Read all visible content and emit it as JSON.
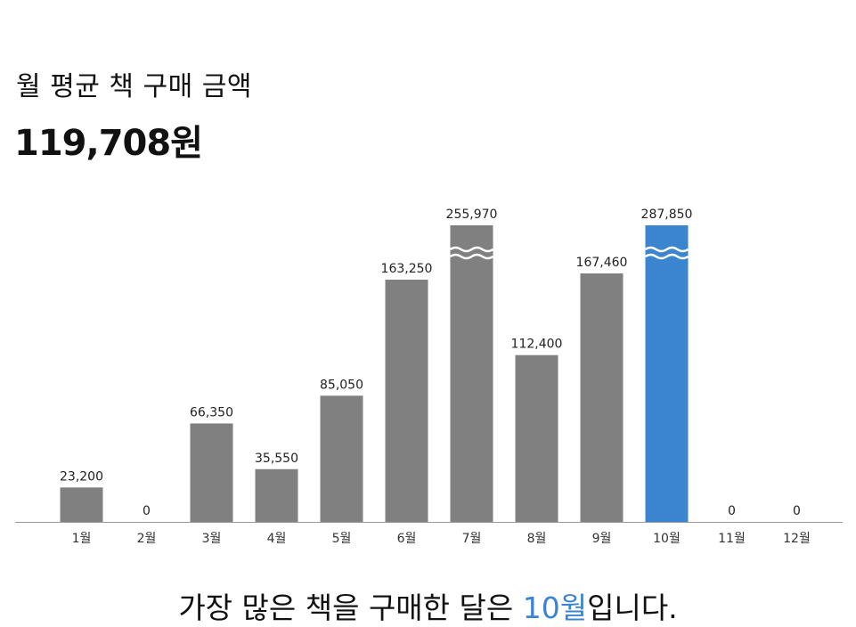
{
  "header": {
    "label": "월 평균 책 구매 금액",
    "value": "119,708원"
  },
  "chart_data": {
    "type": "bar",
    "categories": [
      "1월",
      "2월",
      "3월",
      "4월",
      "5월",
      "6월",
      "7월",
      "8월",
      "9월",
      "10월",
      "11월",
      "12월"
    ],
    "values": [
      23200,
      0,
      66350,
      35550,
      85050,
      163250,
      255970,
      112400,
      167460,
      287850,
      0,
      0
    ],
    "data_labels": [
      "23,200",
      "0",
      "66,350",
      "35,550",
      "85,050",
      "163,250",
      "255,970",
      "112,400",
      "167,460",
      "287,850",
      "0",
      "0"
    ],
    "truncated": [
      false,
      false,
      false,
      false,
      false,
      false,
      true,
      false,
      false,
      true,
      false,
      false
    ],
    "highlight_index": 9,
    "title": "",
    "xlabel": "",
    "ylabel": "",
    "grid": false,
    "legend": "none",
    "colors": {
      "bar": "#808080",
      "highlight": "#3a84d0",
      "axis": "#9a9a9a"
    }
  },
  "summary": {
    "prefix": "가장 많은 책을 구매한 달은 ",
    "highlight": "10월",
    "suffix": "입니다."
  }
}
